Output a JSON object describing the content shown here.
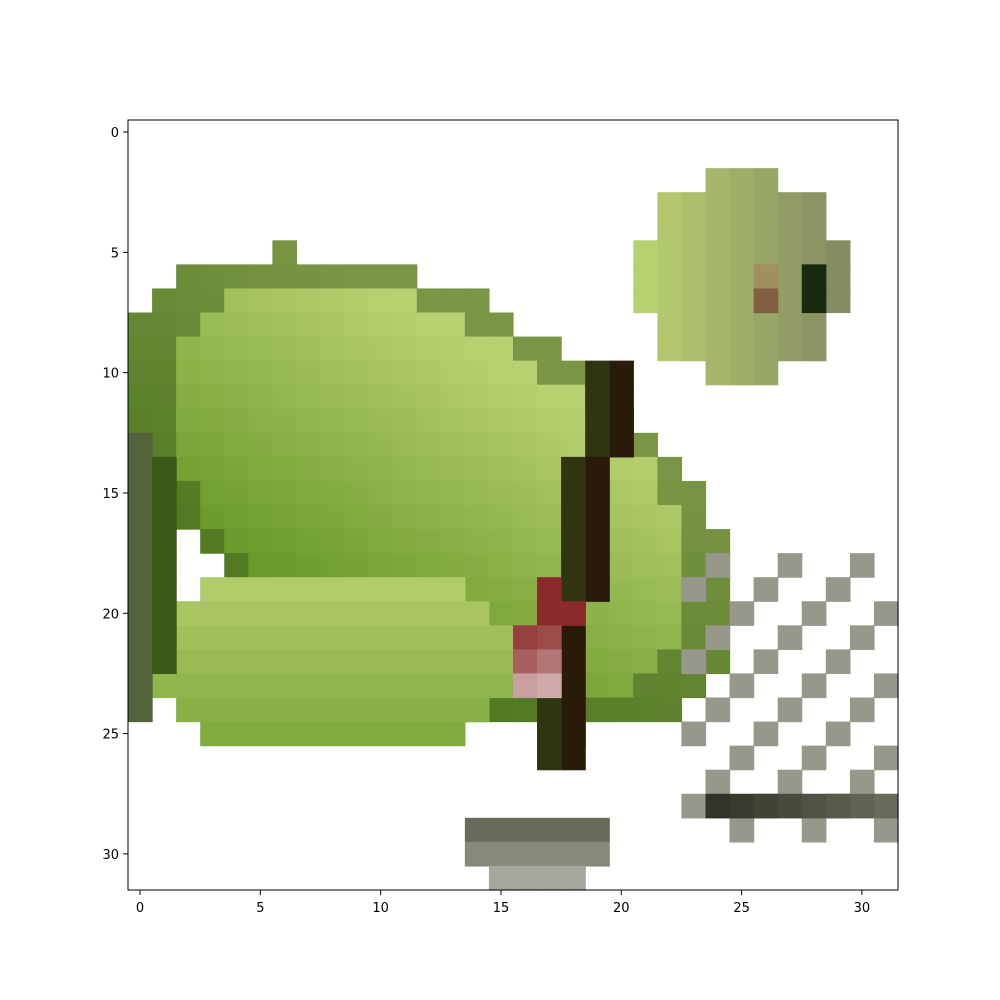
{
  "image": {
    "description_kind": "pixelated low-resolution image displayed with axis ticks",
    "grid_rows": 32,
    "grid_cols": 32,
    "subject_colors": {
      "background": "#ffffff",
      "leaf_dark": "#3a5a1a",
      "leaf_mid": "#6a9a2a",
      "leaf_light": "#b8d070",
      "stem_dark": "#2a1a0a",
      "accent_red": "#8a2a2a",
      "shadow_gray": "#6a6a5a"
    }
  },
  "chart_data": {
    "type": "heatmap",
    "title": "",
    "xlabel": "",
    "ylabel": "",
    "xlim": [
      -0.5,
      31.5
    ],
    "ylim": [
      31.5,
      -0.5
    ],
    "x_ticks": [
      0,
      5,
      10,
      15,
      20,
      25,
      30
    ],
    "y_ticks": [
      0,
      5,
      10,
      15,
      20,
      25,
      30
    ],
    "x_tick_labels": [
      "0",
      "5",
      "10",
      "15",
      "20",
      "25",
      "30"
    ],
    "y_tick_labels": [
      "0",
      "5",
      "10",
      "15",
      "20",
      "25",
      "30"
    ],
    "grid": false
  }
}
